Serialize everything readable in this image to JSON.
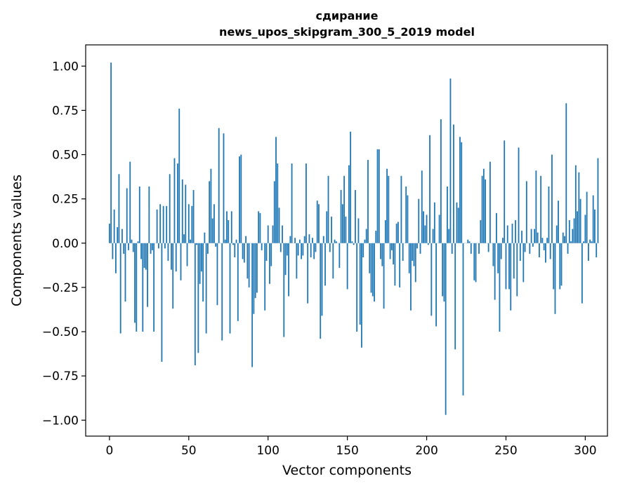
{
  "chart_data": {
    "type": "bar",
    "title": "сдирание",
    "subtitle": "news_upos_skipgram_300_5_2019 model",
    "xlabel": "Vector components",
    "ylabel": "Components values",
    "xlim": [
      -15,
      314
    ],
    "ylim": [
      -1.09,
      1.12
    ],
    "xticks": [
      0,
      50,
      100,
      150,
      200,
      250,
      300
    ],
    "yticks": [
      1.0,
      0.75,
      0.5,
      0.25,
      0.0,
      -0.25,
      -0.5,
      -0.75,
      -1.0
    ],
    "ytick_labels": [
      "1.00",
      "0.75",
      "0.50",
      "0.25",
      "0.00",
      "−0.25",
      "−0.50",
      "−0.75",
      "−1.00"
    ],
    "color": "#1f77b4",
    "grid": false,
    "legend": "none",
    "values": [
      0.11,
      1.02,
      -0.09,
      0.19,
      -0.17,
      0.09,
      0.39,
      -0.51,
      0.08,
      -0.06,
      -0.33,
      0.31,
      -0.04,
      0.46,
      0.02,
      -0.05,
      -0.45,
      -0.5,
      0.01,
      0.32,
      -0.09,
      -0.5,
      -0.14,
      -0.15,
      -0.36,
      0.32,
      -0.06,
      -0.04,
      -0.5,
      0.0,
      0.19,
      -0.03,
      0.22,
      -0.67,
      0.21,
      -0.03,
      0.21,
      -0.1,
      0.39,
      -0.15,
      -0.37,
      0.48,
      -0.16,
      0.45,
      0.76,
      -0.21,
      0.36,
      0.05,
      0.33,
      -0.13,
      0.22,
      0.02,
      0.21,
      0.3,
      -0.69,
      -0.01,
      -0.62,
      -0.23,
      -0.16,
      -0.33,
      0.06,
      -0.51,
      -0.06,
      0.35,
      0.42,
      0.14,
      0.22,
      -0.02,
      -0.35,
      0.65,
      0.0,
      -0.55,
      0.62,
      0.02,
      0.18,
      0.13,
      -0.51,
      0.18,
      -0.01,
      -0.08,
      0.02,
      -0.44,
      0.49,
      0.5,
      -0.09,
      -0.11,
      0.04,
      -0.2,
      -0.25,
      0.0,
      -0.7,
      -0.4,
      -0.31,
      -0.28,
      0.18,
      0.17,
      -0.04,
      0.0,
      -0.38,
      -0.1,
      0.1,
      -0.23,
      -0.13,
      0.1,
      0.35,
      0.6,
      0.45,
      0.2,
      -0.05,
      0.1,
      -0.53,
      -0.18,
      -0.07,
      -0.3,
      0.04,
      0.45,
      0.0,
      0.03,
      -0.2,
      -0.07,
      0.02,
      -0.09,
      -0.07,
      0.04,
      0.45,
      -0.34,
      0.05,
      -0.08,
      0.03,
      -0.09,
      -0.05,
      0.24,
      0.22,
      -0.54,
      -0.41,
      0.04,
      -0.24,
      0.18,
      0.38,
      -0.05,
      0.15,
      -0.2,
      0.02,
      0.01,
      0.0,
      -0.14,
      0.3,
      0.22,
      0.38,
      0.15,
      -0.26,
      0.44,
      0.63,
      0.01,
      -0.01,
      0.3,
      -0.5,
      0.14,
      -0.46,
      -0.59,
      -0.08,
      0.02,
      0.08,
      0.47,
      -0.17,
      -0.28,
      -0.3,
      -0.33,
      0.07,
      0.53,
      0.53,
      -0.09,
      -0.13,
      -0.37,
      0.13,
      0.42,
      0.38,
      -0.09,
      -0.04,
      -0.12,
      -0.24,
      0.11,
      0.12,
      -0.25,
      0.38,
      -0.1,
      0.0,
      0.32,
      0.27,
      -0.17,
      -0.38,
      -0.1,
      -0.13,
      -0.22,
      -0.03,
      0.25,
      -0.06,
      0.41,
      0.18,
      0.1,
      0.16,
      -0.01,
      0.61,
      -0.41,
      0.08,
      0.23,
      -0.47,
      0.0,
      0.16,
      0.7,
      -0.3,
      -0.33,
      -0.97,
      0.32,
      0.08,
      0.93,
      -0.06,
      0.67,
      -0.6,
      0.23,
      0.2,
      0.6,
      0.57,
      -0.86,
      0.0,
      0.0,
      0.02,
      0.01,
      -0.06,
      0.0,
      -0.21,
      -0.22,
      0.0,
      -0.06,
      0.13,
      0.38,
      0.42,
      0.36,
      0.0,
      -0.05,
      0.46,
      0.0,
      -0.13,
      -0.32,
      0.17,
      -0.17,
      -0.5,
      -0.09,
      0.03,
      0.58,
      -0.26,
      0.1,
      -0.26,
      -0.38,
      0.11,
      -0.2,
      0.13,
      -0.3,
      0.54,
      -0.1,
      0.07,
      -0.22,
      -0.05,
      0.35,
      0.0,
      -0.06,
      0.08,
      -0.02,
      0.08,
      0.41,
      0.06,
      -0.08,
      0.38,
      0.03,
      -0.04,
      -0.11,
      0.03,
      0.32,
      -0.09,
      0.5,
      -0.26,
      -0.4,
      0.1,
      0.24,
      -0.26,
      -0.24,
      0.06,
      0.04,
      0.79,
      -0.06,
      0.13,
      0.01,
      0.08,
      0.14,
      0.44,
      0.18,
      0.4,
      0.25,
      -0.34,
      0.01,
      0.16,
      0.29,
      -0.1,
      0.02,
      0.01,
      0.27,
      0.19,
      -0.08,
      0.48
    ]
  }
}
